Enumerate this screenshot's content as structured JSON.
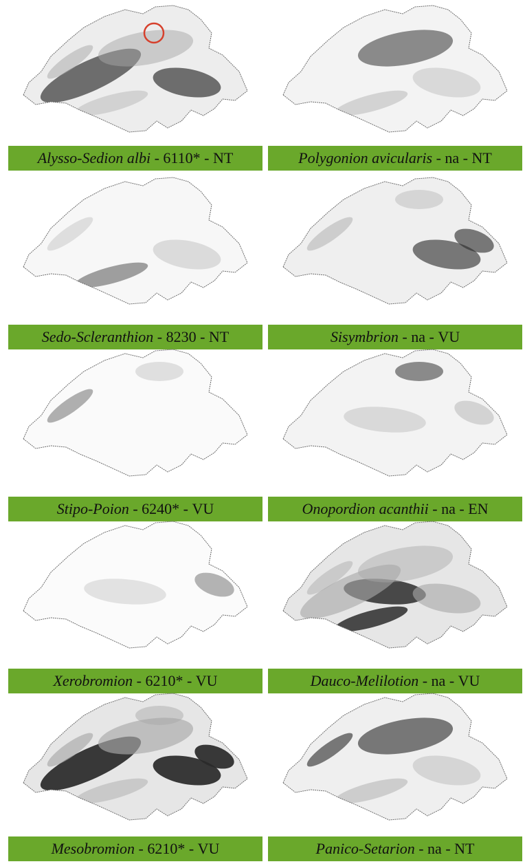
{
  "colors": {
    "label_background": "#6aa82b",
    "outline": "#6e6e6e",
    "fill_light": "#e6e6e6",
    "fill_mid": "#a8a8a8",
    "fill_dark": "#2a2a2a",
    "highlight_circle": "#d6402c"
  },
  "panels": [
    {
      "name": "Alysso-Sedion albi",
      "code": "6110*",
      "status": "NT",
      "intensity": 0.45,
      "marked_location": true
    },
    {
      "name": "Polygonion avicularis",
      "code": "na",
      "status": "NT",
      "intensity": 0.3,
      "marked_location": false
    },
    {
      "name": "Sedo-Scleranthion",
      "code": "8230",
      "status": "NT",
      "intensity": 0.2,
      "marked_location": false
    },
    {
      "name": "Sisymbrion",
      "code": "na",
      "status": "VU",
      "intensity": 0.4,
      "marked_location": false
    },
    {
      "name": "Stipo-Poion",
      "code": "6240*",
      "status": "VU",
      "intensity": 0.12,
      "marked_location": false
    },
    {
      "name": "Onopordion acanthii",
      "code": "na",
      "status": "EN",
      "intensity": 0.3,
      "marked_location": false
    },
    {
      "name": "Xerobromion",
      "code": "6210*",
      "status": "VU",
      "intensity": 0.1,
      "marked_location": false
    },
    {
      "name": "Dauco-Melilotion",
      "code": "na",
      "status": "VU",
      "intensity": 0.65,
      "marked_location": false
    },
    {
      "name": "Mesobromion",
      "code": "6210*",
      "status": "VU",
      "intensity": 0.75,
      "marked_location": false
    },
    {
      "name": "Panico-Setarion",
      "code": "na",
      "status": "NT",
      "intensity": 0.4,
      "marked_location": false
    }
  ]
}
